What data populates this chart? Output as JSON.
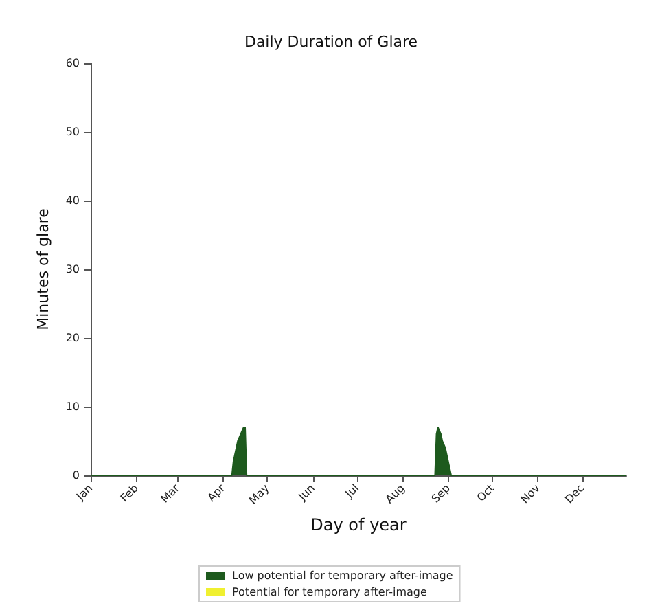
{
  "chart_data": {
    "type": "area",
    "title": "Daily Duration of Glare",
    "xlabel": "Day of year",
    "ylabel": "Minutes of glare",
    "series": [
      {
        "name": "Low potential for temporary after-image",
        "color": "#1e5a1e",
        "x": [
          "--01-01",
          "--04-07",
          "--04-08",
          "--04-09",
          "--04-10",
          "--04-11",
          "--04-12",
          "--04-13",
          "--04-14",
          "--04-15",
          "--04-16",
          "--04-17",
          "--08-23",
          "--08-24",
          "--08-25",
          "--08-26",
          "--08-27",
          "--08-28",
          "--08-29",
          "--08-30",
          "--08-31",
          "--09-01",
          "--09-02",
          "--09-03",
          "--12-31"
        ],
        "values": [
          0,
          0,
          2,
          3,
          4,
          5,
          5.5,
          6,
          6.5,
          7,
          7,
          0,
          0,
          6,
          7,
          6.5,
          6,
          5,
          4.5,
          4,
          3,
          2,
          1,
          0,
          0
        ]
      },
      {
        "name": "Potential for temporary after-image",
        "color": "#f0f030"
      }
    ],
    "xlim": [
      "--01-01",
      "--12-31"
    ],
    "xticks": [
      {
        "value": "--01-01",
        "label": "Jan"
      },
      {
        "value": "--02-01",
        "label": "Feb"
      },
      {
        "value": "--03-01",
        "label": "Mar"
      },
      {
        "value": "--04-01",
        "label": "Apr"
      },
      {
        "value": "--05-01",
        "label": "May"
      },
      {
        "value": "--06-01",
        "label": "Jun"
      },
      {
        "value": "--07-01",
        "label": "Jul"
      },
      {
        "value": "--08-01",
        "label": "Aug"
      },
      {
        "value": "--09-01",
        "label": "Sep"
      },
      {
        "value": "--10-01",
        "label": "Oct"
      },
      {
        "value": "--11-01",
        "label": "Nov"
      },
      {
        "value": "--12-01",
        "label": "Dec"
      }
    ],
    "ylim": [
      0,
      60
    ],
    "yticks": [
      0,
      10,
      20,
      30,
      40,
      50,
      60
    ],
    "grid": false,
    "legend": "bottom"
  }
}
